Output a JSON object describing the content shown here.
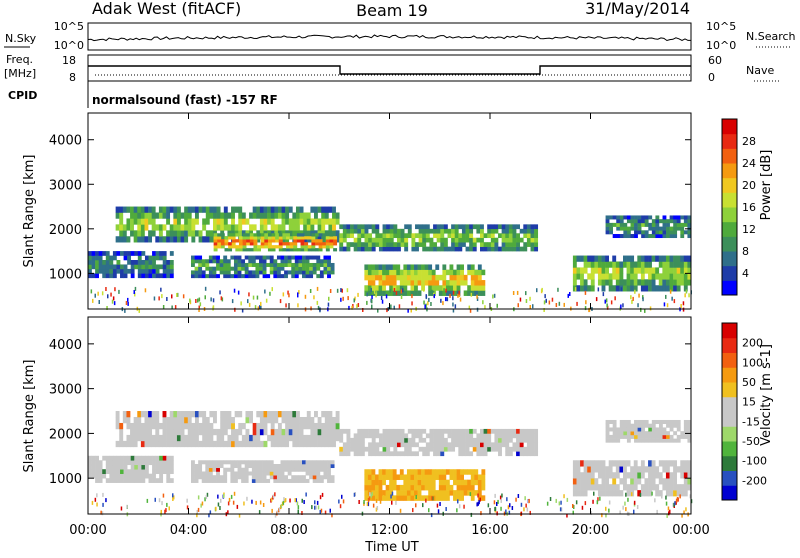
{
  "header": {
    "station": "Adak West (fitACF)",
    "beam": "Beam 19",
    "date": "31/May/2014"
  },
  "panels": {
    "nsky": {
      "left_label": "N.Sky",
      "ticks": [
        "10^5",
        "10^0"
      ],
      "right_ticks": [
        "10^5",
        "10^0"
      ],
      "right_label": "N.Search"
    },
    "freq": {
      "left_label_1": "Freq.",
      "left_label_2": "[MHz]",
      "ticks": [
        "18",
        "8"
      ],
      "right_ticks": [
        "60",
        "0"
      ],
      "right_label": "Nave"
    },
    "cpid": {
      "label": "CPID",
      "text": "normalsound (fast) -157 RF"
    }
  },
  "chart_data": [
    {
      "type": "heatmap",
      "name": "power",
      "ylabel": "Slant Range [km]",
      "yticks": [
        "4000",
        "3000",
        "2000",
        "1000"
      ],
      "ylim": [
        200,
        4600
      ],
      "colorbar": {
        "label": "Power [dB]",
        "ticks": [
          "28",
          "24",
          "20",
          "16",
          "12",
          "8",
          "4"
        ],
        "colors": [
          "#0000ff",
          "#1e3ca8",
          "#2f6f8a",
          "#3c8f5a",
          "#4faa3c",
          "#8ed13a",
          "#c8e032",
          "#f0c820",
          "#f59a10",
          "#f26010",
          "#e82a12",
          "#d80000"
        ]
      },
      "regions": [
        {
          "x0": 1.1,
          "x1": 10.0,
          "r0": 1700,
          "r1": 2500,
          "level": 0.55
        },
        {
          "x0": 5.0,
          "x1": 9.9,
          "r0": 1500,
          "r1": 1900,
          "level": 0.85
        },
        {
          "x0": 0.0,
          "x1": 3.4,
          "r0": 900,
          "r1": 1500,
          "level": 0.3
        },
        {
          "x0": 4.1,
          "x1": 9.8,
          "r0": 900,
          "r1": 1400,
          "level": 0.35
        },
        {
          "x0": 10.0,
          "x1": 17.9,
          "r0": 1500,
          "r1": 2100,
          "level": 0.5
        },
        {
          "x0": 11.0,
          "x1": 15.8,
          "r0": 500,
          "r1": 1200,
          "level": 0.7
        },
        {
          "x0": 20.6,
          "x1": 24.0,
          "r0": 1800,
          "r1": 2300,
          "level": 0.35
        },
        {
          "x0": 19.3,
          "x1": 24.0,
          "r0": 600,
          "r1": 1400,
          "level": 0.55
        }
      ]
    },
    {
      "type": "heatmap",
      "name": "velocity",
      "ylabel": "Slant Range [km]",
      "yticks": [
        "4000",
        "3000",
        "2000",
        "1000"
      ],
      "xticks": [
        "00:00",
        "04:00",
        "08:00",
        "12:00",
        "16:00",
        "20:00",
        "00:00"
      ],
      "xlabel": "Time UT",
      "ylim": [
        200,
        4600
      ],
      "colorbar": {
        "label": "Velocity [m s-1]",
        "ticks": [
          "200",
          "100",
          "50",
          "15",
          "-15",
          "-50",
          "-100",
          "-200"
        ],
        "colors": [
          "#0000d0",
          "#2850c0",
          "#2d7a3a",
          "#50b43c",
          "#9ed86a",
          "#c8c8c8",
          "#c8c8c8",
          "#f0c020",
          "#f59a10",
          "#f26010",
          "#e82a12",
          "#d80000"
        ]
      },
      "regions": [
        {
          "x0": 1.1,
          "x1": 10.0,
          "r0": 1700,
          "r1": 2500,
          "level": 0.5
        },
        {
          "x0": 0.0,
          "x1": 3.4,
          "r0": 900,
          "r1": 1500,
          "level": 0.5
        },
        {
          "x0": 4.1,
          "x1": 9.8,
          "r0": 900,
          "r1": 1400,
          "level": 0.5
        },
        {
          "x0": 10.0,
          "x1": 17.9,
          "r0": 1500,
          "r1": 2100,
          "level": 0.5
        },
        {
          "x0": 11.0,
          "x1": 15.8,
          "r0": 500,
          "r1": 1200,
          "level": 0.8
        },
        {
          "x0": 20.6,
          "x1": 24.0,
          "r0": 1800,
          "r1": 2300,
          "level": 0.5
        },
        {
          "x0": 19.3,
          "x1": 24.0,
          "r0": 600,
          "r1": 1400,
          "level": 0.5
        }
      ]
    }
  ]
}
